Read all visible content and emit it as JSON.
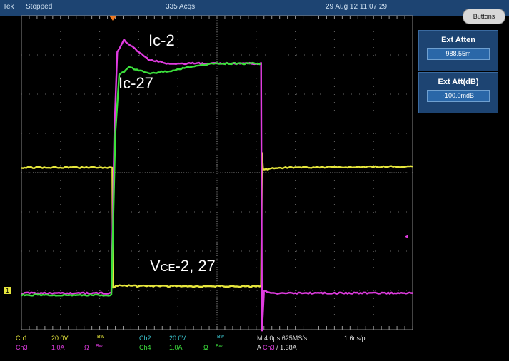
{
  "status_bar": {
    "brand": "Tek",
    "state": "Stopped",
    "acquisitions": "335 Acqs",
    "datetime": "29 Aug 12 11:07:29",
    "buttons_label": "Buttons"
  },
  "side_panel": {
    "ext_atten": {
      "label": "Ext Atten",
      "value": "988.55m"
    },
    "ext_att_db": {
      "label": "Ext Att(dB)",
      "value": "-100.0mdB"
    }
  },
  "channels": [
    {
      "name": "Ch1",
      "scale": "20.0V",
      "bw": "Bw",
      "color": "#e6e63c"
    },
    {
      "name": "Ch2",
      "scale": "20.0V",
      "bw": "Bw",
      "color": "#3cc8d2"
    },
    {
      "name": "Ch3",
      "scale": "1.0A",
      "bw": "Bw",
      "ohm": "Ω",
      "color": "#e03ce0"
    },
    {
      "name": "Ch4",
      "scale": "1.0A",
      "bw": "Bw",
      "ohm": "Ω",
      "color": "#3ce03c"
    }
  ],
  "timebase": {
    "main": "M 4.0µs 625MS/s",
    "resolution": "1.6ns/pt"
  },
  "trigger": {
    "prefix": "A",
    "source": "Ch3",
    "slope": "/",
    "level": "1.38A"
  },
  "ground_marker": "1",
  "annotations": {
    "ic2": "Ic-2",
    "ic27": "Ic-27",
    "vce_prefix": "V",
    "vce_sub": "CE",
    "vce_suffix": "-2, 27"
  },
  "chart_data": {
    "type": "line",
    "xlabel": "",
    "ylabel": "",
    "grid": true,
    "x_units": "µs",
    "xlim": [
      0,
      40
    ],
    "divisions": {
      "x": 10,
      "y": 8
    },
    "series": [
      {
        "channel": "Ch1",
        "units": "V",
        "color": "#e6e63c",
        "points": [
          [
            0,
            63
          ],
          [
            9.3,
            63
          ],
          [
            9.35,
            2
          ],
          [
            10,
            3
          ],
          [
            12,
            2.5
          ],
          [
            24.5,
            2.5
          ],
          [
            24.6,
            70
          ],
          [
            24.7,
            62
          ],
          [
            27,
            63
          ],
          [
            40,
            63.5
          ]
        ]
      },
      {
        "channel": "Ch3",
        "units": "A",
        "color": "#e03ce0",
        "points": [
          [
            0,
            -0.05
          ],
          [
            9.2,
            -0.05
          ],
          [
            9.5,
            4
          ],
          [
            9.8,
            6.1
          ],
          [
            10.5,
            6.4
          ],
          [
            11.5,
            6.2
          ],
          [
            13,
            5.9
          ],
          [
            15,
            5.8
          ],
          [
            20,
            5.8
          ],
          [
            24.5,
            5.8
          ],
          [
            24.6,
            -1
          ],
          [
            24.8,
            0
          ],
          [
            26,
            -0.05
          ],
          [
            40,
            -0.05
          ]
        ]
      },
      {
        "channel": "Ch4",
        "units": "A",
        "color": "#3ce03c",
        "points": [
          [
            0,
            -0.1
          ],
          [
            9.2,
            -0.1
          ],
          [
            9.6,
            4
          ],
          [
            10,
            5.5
          ],
          [
            11,
            5.7
          ],
          [
            13,
            5.55
          ],
          [
            15,
            5.6
          ],
          [
            18,
            5.75
          ],
          [
            20,
            5.8
          ],
          [
            24.5,
            5.8
          ]
        ]
      }
    ]
  }
}
